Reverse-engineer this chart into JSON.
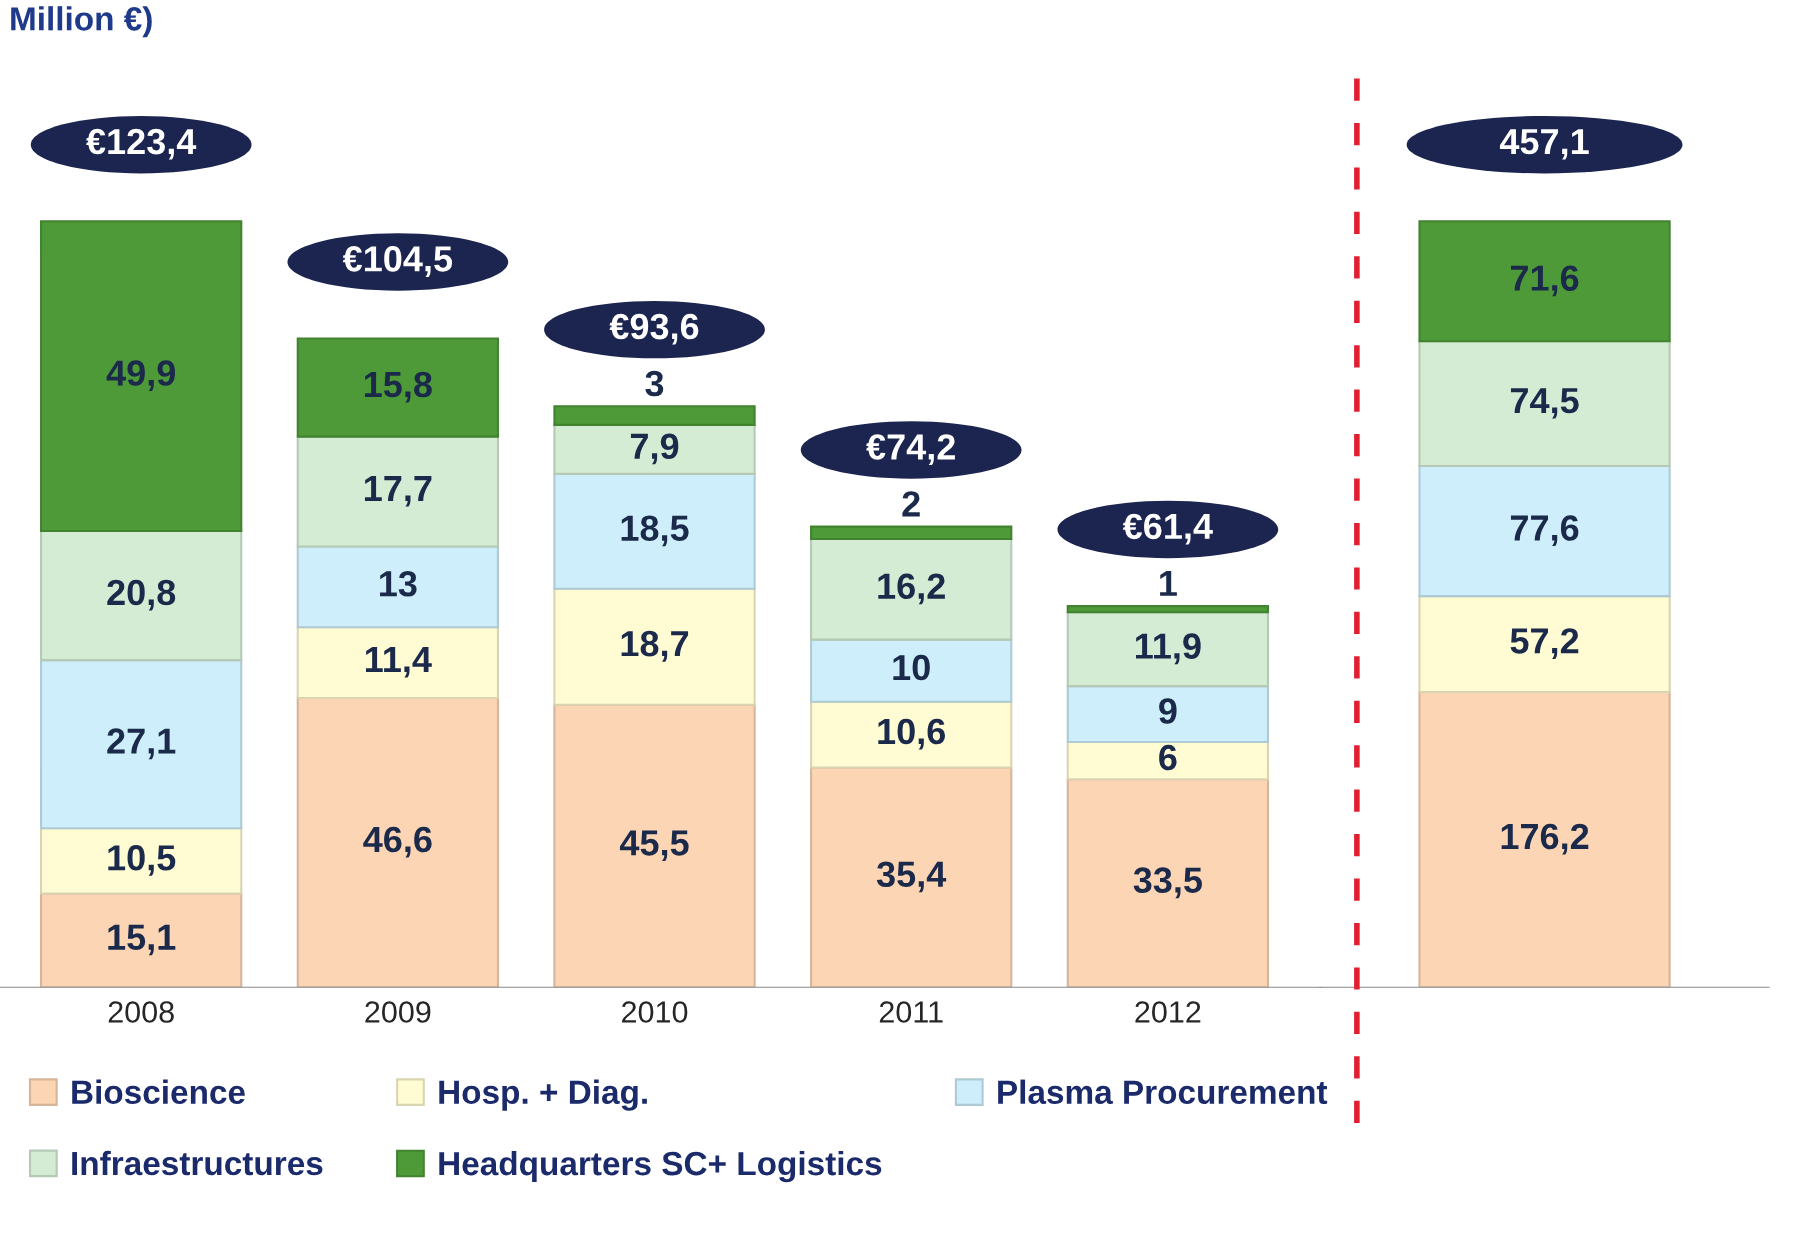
{
  "chart_data": [
    {
      "type": "bar",
      "title": "Million €)",
      "categories": [
        "2008",
        "2009",
        "2010",
        "2011",
        "2012"
      ],
      "stacked": true,
      "series": [
        {
          "name": "Bioscience",
          "color": "#fcd5b5",
          "values": [
            15.1,
            46.6,
            45.5,
            35.4,
            33.5
          ],
          "value_labels": [
            "15,1",
            "46,6",
            "45,5",
            "35,4",
            "33,5"
          ]
        },
        {
          "name": "Hosp. + Diag.",
          "color": "#fffbd3",
          "values": [
            10.5,
            11.4,
            18.7,
            10.6,
            6
          ],
          "value_labels": [
            "10,5",
            "11,4",
            "18,7",
            "10,6",
            "6"
          ]
        },
        {
          "name": "Plasma Procurement",
          "color": "#cdeefa",
          "values": [
            27.1,
            13,
            18.5,
            10,
            9
          ],
          "value_labels": [
            "27,1",
            "13",
            "18,5",
            "10",
            "9"
          ]
        },
        {
          "name": "Infraestructures",
          "color": "#d5ecd4",
          "values": [
            20.8,
            17.7,
            7.9,
            16.2,
            11.9
          ],
          "value_labels": [
            "20,8",
            "17,7",
            "7,9",
            "16,2",
            "11,9"
          ]
        },
        {
          "name": "Headquarters SC+ Logistics",
          "color": "#4e9a38",
          "values": [
            49.9,
            15.8,
            3,
            2,
            1
          ],
          "value_labels": [
            "49,9",
            "15,8",
            "3",
            "2",
            "1"
          ]
        }
      ],
      "totals": [
        "€123,4",
        "€104,5",
        "€93,6",
        "€74,2",
        "€61,4"
      ],
      "legend": "bottom"
    },
    {
      "type": "bar",
      "categories": [
        null
      ],
      "stacked": true,
      "series": [
        {
          "color": "#fcd5b5",
          "values": [
            176.2
          ],
          "value_labels": [
            "176,2"
          ]
        },
        {
          "color": "#fffbd3",
          "values": [
            57.2
          ],
          "value_labels": [
            "57,2"
          ]
        },
        {
          "color": "#cdeefa",
          "values": [
            77.6
          ],
          "value_labels": [
            "77,6"
          ]
        },
        {
          "color": "#d5ecd4",
          "values": [
            74.5
          ],
          "value_labels": [
            "74,5"
          ]
        },
        {
          "color": "#4e9a38",
          "values": [
            71.6
          ],
          "value_labels": [
            "71,6"
          ]
        }
      ],
      "totals": [
        "457,1"
      ]
    }
  ]
}
